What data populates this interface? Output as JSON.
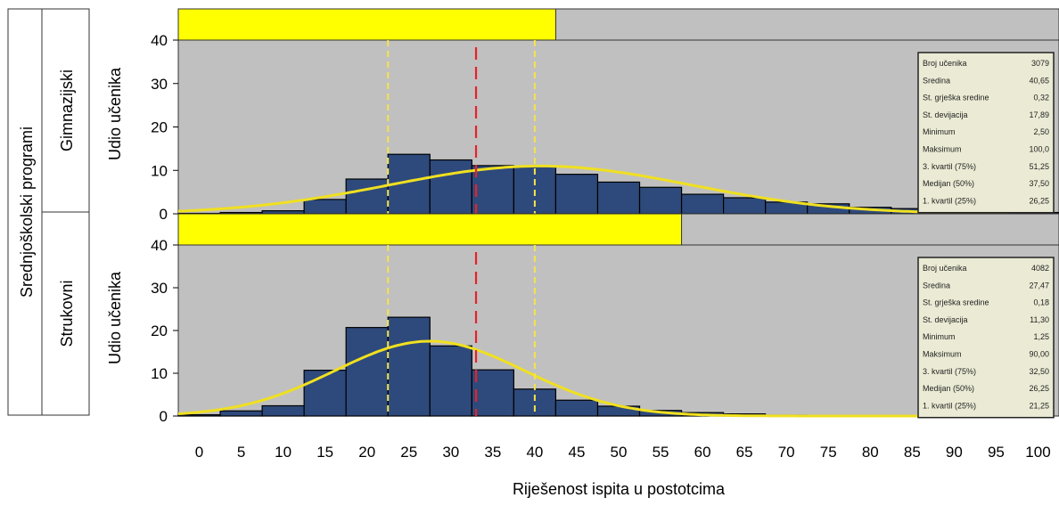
{
  "outer_label": "Srednjoškolski programi",
  "xlabel": "Riješenost ispita u postotcima",
  "colors": {
    "panel_bg": "#c0c0c0",
    "bar_fill": "#2e4a7c",
    "bar_stroke": "#000000",
    "curve": "#f0e020",
    "yellow_bar": "#ffff00",
    "mean_line": "#f5e44a",
    "red_line": "#e8202a",
    "stats_bg": "#ebebd5"
  },
  "chart_data": [
    {
      "type": "bar",
      "panel_label": "Gimnazijski",
      "ylabel": "Udio učenika",
      "ylim": [
        0,
        40
      ],
      "yticks": [
        0,
        10,
        20,
        30,
        40
      ],
      "xlim": [
        -2.5,
        102.5
      ],
      "xticks": [
        0,
        5,
        10,
        15,
        20,
        25,
        30,
        35,
        40,
        45,
        50,
        55,
        60,
        65,
        70,
        75,
        80,
        85,
        90,
        95,
        100
      ],
      "bin_width": 5,
      "bin_centers": [
        0,
        5,
        10,
        15,
        20,
        25,
        30,
        35,
        40,
        45,
        50,
        55,
        60,
        65,
        70,
        75,
        80,
        85,
        90,
        95,
        100
      ],
      "values": [
        0.1,
        0.3,
        0.7,
        3.3,
        8.0,
        13.7,
        12.4,
        11.1,
        10.9,
        9.1,
        7.3,
        6.1,
        4.5,
        3.7,
        2.7,
        2.3,
        1.5,
        1.2,
        0.7,
        0.5,
        0.3
      ],
      "yellow_bar_end": 42.5,
      "vlines_yellow": [
        22.5,
        40
      ],
      "vline_red": 33,
      "normal_curve": {
        "mean": 40.65,
        "sd": 17.89,
        "peak": 11.0
      },
      "stats": [
        {
          "label": "Broj učenika",
          "value": "3079"
        },
        {
          "label": "Sredina",
          "value": "40,65"
        },
        {
          "label": "St. grješka sredine",
          "value": "0,32"
        },
        {
          "label": "St. devijacija",
          "value": "17,89"
        },
        {
          "label": "Minimum",
          "value": "2,50"
        },
        {
          "label": "Maksimum",
          "value": "100,0"
        },
        {
          "label": "3. kvartil (75%)",
          "value": "51,25"
        },
        {
          "label": "Medijan (50%)",
          "value": "37,50"
        },
        {
          "label": "1. kvartil (25%)",
          "value": "26,25"
        }
      ]
    },
    {
      "type": "bar",
      "panel_label": "Strukovni",
      "ylabel": "Udio učenika",
      "ylim": [
        0,
        40
      ],
      "yticks": [
        0,
        10,
        20,
        30,
        40
      ],
      "xlim": [
        -2.5,
        102.5
      ],
      "xticks": [
        0,
        5,
        10,
        15,
        20,
        25,
        30,
        35,
        40,
        45,
        50,
        55,
        60,
        65,
        70,
        75,
        80,
        85,
        90,
        95,
        100
      ],
      "bin_width": 5,
      "bin_centers": [
        0,
        5,
        10,
        15,
        20,
        25,
        30,
        35,
        40,
        45,
        50,
        55,
        60,
        65,
        70,
        75,
        80,
        85,
        90,
        95,
        100
      ],
      "values": [
        0.3,
        1.2,
        2.4,
        10.7,
        20.7,
        23.1,
        16.4,
        10.8,
        6.3,
        3.7,
        2.3,
        1.3,
        0.8,
        0.5,
        0.2,
        0.1,
        0.05,
        0.05,
        0.05,
        0.05,
        0
      ],
      "yellow_bar_end": 57.5,
      "vlines_yellow": [
        22.5,
        40
      ],
      "vline_red": 33,
      "normal_curve": {
        "mean": 27.47,
        "sd": 11.3,
        "peak": 17.5
      },
      "stats": [
        {
          "label": "Broj učenika",
          "value": "4082"
        },
        {
          "label": "Sredina",
          "value": "27,47"
        },
        {
          "label": "St. grješka sredine",
          "value": "0,18"
        },
        {
          "label": "St. devijacija",
          "value": "11,30"
        },
        {
          "label": "Minimum",
          "value": "1,25"
        },
        {
          "label": "Maksimum",
          "value": "90,00"
        },
        {
          "label": "3. kvartil (75%)",
          "value": "32,50"
        },
        {
          "label": "Medijan (50%)",
          "value": "26,25"
        },
        {
          "label": "1. kvartil (25%)",
          "value": "21,25"
        }
      ]
    }
  ]
}
